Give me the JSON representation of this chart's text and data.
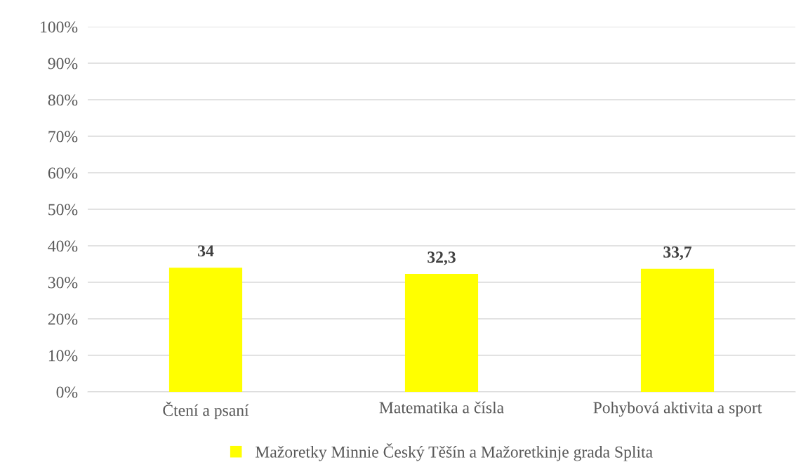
{
  "chart_data": {
    "type": "bar",
    "categories": [
      "Čtení a psaní",
      "Matematika a čísla",
      "Pohybová aktivita a sport"
    ],
    "series": [
      {
        "name": "Mažoretky Minnie Český Těšín a Mažoretkinje grada Splita",
        "color": "#ffff00",
        "values": [
          34,
          32.3,
          33.7
        ],
        "value_labels": [
          "34",
          "32,3",
          "33,7"
        ]
      }
    ],
    "ylim": [
      0,
      100
    ],
    "yticks": [
      {
        "value": 0,
        "label": "0%"
      },
      {
        "value": 10,
        "label": "10%"
      },
      {
        "value": 20,
        "label": "20%"
      },
      {
        "value": 30,
        "label": "30%"
      },
      {
        "value": 40,
        "label": "40%"
      },
      {
        "value": 50,
        "label": "50%"
      },
      {
        "value": 60,
        "label": "60%"
      },
      {
        "value": 70,
        "label": "70%"
      },
      {
        "value": 80,
        "label": "80%"
      },
      {
        "value": 90,
        "label": "90%"
      },
      {
        "value": 100,
        "label": "100%"
      }
    ],
    "grid": "y",
    "legend": "bottom"
  }
}
